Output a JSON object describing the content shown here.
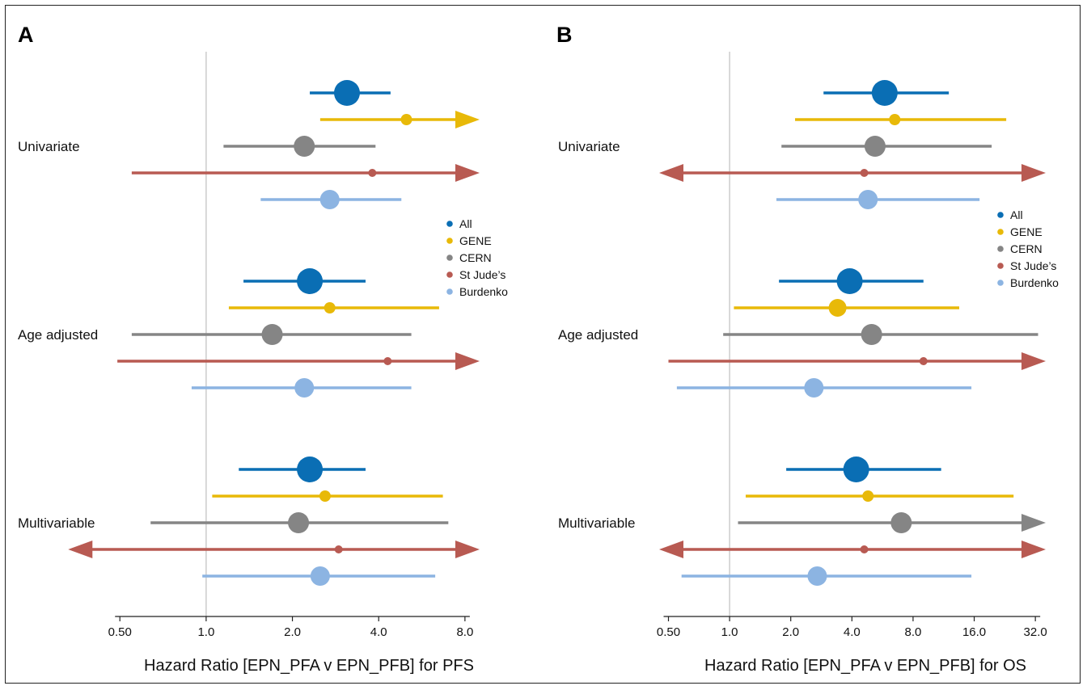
{
  "colors": {
    "All": "#0a6eb4",
    "GENE": "#e8b908",
    "CERN": "#858585",
    "St Jude’s": "#b85a52",
    "Burdenko": "#8cb4e2",
    "reference_line": "#cccccc"
  },
  "chart_data": [
    {
      "panel": "A",
      "type": "forest",
      "xlabel": "Hazard Ratio [EPN_PFA v EPN_PFB] for PFS",
      "xscale": "log2",
      "xlim": [
        0.45,
        9.0
      ],
      "xticks": [
        0.5,
        1.0,
        2.0,
        4.0,
        8.0
      ],
      "xtick_labels": [
        "0.50",
        "1.0",
        "2.0",
        "4.0",
        "8.0"
      ],
      "reference_line": 1.0,
      "legend": {
        "placement": "right",
        "entries": [
          "All",
          "GENE",
          "CERN",
          "St Jude’s",
          "Burdenko"
        ]
      },
      "groups": [
        {
          "label": "Univariate",
          "rows": [
            {
              "series": "All",
              "hr": 3.1,
              "lo": 2.3,
              "hi": 4.4,
              "arrow_left": false,
              "arrow_right": false
            },
            {
              "series": "GENE",
              "hr": 5.0,
              "lo": 2.5,
              "hi": 9.0,
              "arrow_left": false,
              "arrow_right": true
            },
            {
              "series": "CERN",
              "hr": 2.2,
              "lo": 1.15,
              "hi": 3.9,
              "arrow_left": false,
              "arrow_right": false
            },
            {
              "series": "St Jude’s",
              "hr": 3.8,
              "lo": 0.55,
              "hi": 9.0,
              "arrow_left": false,
              "arrow_right": true
            },
            {
              "series": "Burdenko",
              "hr": 2.7,
              "lo": 1.55,
              "hi": 4.8,
              "arrow_left": false,
              "arrow_right": false
            }
          ]
        },
        {
          "label": "Age adjusted",
          "rows": [
            {
              "series": "All",
              "hr": 2.3,
              "lo": 1.35,
              "hi": 3.6,
              "arrow_left": false,
              "arrow_right": false
            },
            {
              "series": "GENE",
              "hr": 2.7,
              "lo": 1.2,
              "hi": 6.5,
              "arrow_left": false,
              "arrow_right": false
            },
            {
              "series": "CERN",
              "hr": 1.7,
              "lo": 0.55,
              "hi": 5.2,
              "arrow_left": false,
              "arrow_right": false
            },
            {
              "series": "St Jude’s",
              "hr": 4.3,
              "lo": 0.49,
              "hi": 9.0,
              "arrow_left": false,
              "arrow_right": true
            },
            {
              "series": "Burdenko",
              "hr": 2.2,
              "lo": 0.89,
              "hi": 5.2,
              "arrow_left": false,
              "arrow_right": false
            }
          ]
        },
        {
          "label": "Multivariable",
          "rows": [
            {
              "series": "All",
              "hr": 2.3,
              "lo": 1.3,
              "hi": 3.6,
              "arrow_left": false,
              "arrow_right": false
            },
            {
              "series": "GENE",
              "hr": 2.6,
              "lo": 1.05,
              "hi": 6.7,
              "arrow_left": false,
              "arrow_right": false
            },
            {
              "series": "CERN",
              "hr": 2.1,
              "lo": 0.64,
              "hi": 7.0,
              "arrow_left": false,
              "arrow_right": false
            },
            {
              "series": "St Jude’s",
              "hr": 2.9,
              "lo": 0.33,
              "hi": 9.0,
              "arrow_left": true,
              "arrow_right": true
            },
            {
              "series": "Burdenko",
              "hr": 2.5,
              "lo": 0.97,
              "hi": 6.3,
              "arrow_left": false,
              "arrow_right": false
            }
          ]
        }
      ]
    },
    {
      "panel": "B",
      "type": "forest",
      "xlabel": "Hazard Ratio [EPN_PFA v EPN_PFB] for OS",
      "xscale": "log2",
      "xlim": [
        0.45,
        36.0
      ],
      "xticks": [
        0.5,
        1.0,
        2.0,
        4.0,
        8.0,
        16.0,
        32.0
      ],
      "xtick_labels": [
        "0.50",
        "1.0",
        "2.0",
        "4.0",
        "8.0",
        "16.0",
        "32.0"
      ],
      "reference_line": 1.0,
      "legend": {
        "placement": "right",
        "entries": [
          "All",
          "GENE",
          "CERN",
          "St Jude’s",
          "Burdenko"
        ]
      },
      "groups": [
        {
          "label": "Univariate",
          "rows": [
            {
              "series": "All",
              "hr": 5.8,
              "lo": 2.9,
              "hi": 12.0,
              "arrow_left": false,
              "arrow_right": false
            },
            {
              "series": "GENE",
              "hr": 6.5,
              "lo": 2.1,
              "hi": 23.0,
              "arrow_left": false,
              "arrow_right": false
            },
            {
              "series": "CERN",
              "hr": 5.2,
              "lo": 1.8,
              "hi": 19.5,
              "arrow_left": false,
              "arrow_right": false
            },
            {
              "series": "St Jude’s",
              "hr": 4.6,
              "lo": 0.45,
              "hi": 36.0,
              "arrow_left": true,
              "arrow_right": true
            },
            {
              "series": "Burdenko",
              "hr": 4.8,
              "lo": 1.7,
              "hi": 17.0,
              "arrow_left": false,
              "arrow_right": false
            }
          ]
        },
        {
          "label": "Age adjusted",
          "rows": [
            {
              "series": "All",
              "hr": 3.9,
              "lo": 1.75,
              "hi": 9.0,
              "arrow_left": false,
              "arrow_right": false
            },
            {
              "series": "GENE",
              "hr": 3.4,
              "lo": 1.05,
              "hi": 13.5,
              "arrow_left": false,
              "arrow_right": false
            },
            {
              "series": "CERN",
              "hr": 5.0,
              "lo": 0.93,
              "hi": 33.0,
              "arrow_left": false,
              "arrow_right": false
            },
            {
              "series": "St Jude’s",
              "hr": 9.0,
              "lo": 0.5,
              "hi": 36.0,
              "arrow_left": false,
              "arrow_right": true
            },
            {
              "series": "Burdenko",
              "hr": 2.6,
              "lo": 0.55,
              "hi": 15.5,
              "arrow_left": false,
              "arrow_right": false
            }
          ]
        },
        {
          "label": "Multivariable",
          "rows": [
            {
              "series": "All",
              "hr": 4.2,
              "lo": 1.9,
              "hi": 11.0,
              "arrow_left": false,
              "arrow_right": false
            },
            {
              "series": "GENE",
              "hr": 4.8,
              "lo": 1.2,
              "hi": 25.0,
              "arrow_left": false,
              "arrow_right": false
            },
            {
              "series": "CERN",
              "hr": 7.0,
              "lo": 1.1,
              "hi": 36.0,
              "arrow_left": false,
              "arrow_right": true
            },
            {
              "series": "St Jude’s",
              "hr": 4.6,
              "lo": 0.45,
              "hi": 36.0,
              "arrow_left": true,
              "arrow_right": true
            },
            {
              "series": "Burdenko",
              "hr": 2.7,
              "lo": 0.58,
              "hi": 15.5,
              "arrow_left": false,
              "arrow_right": false
            }
          ]
        }
      ]
    }
  ]
}
